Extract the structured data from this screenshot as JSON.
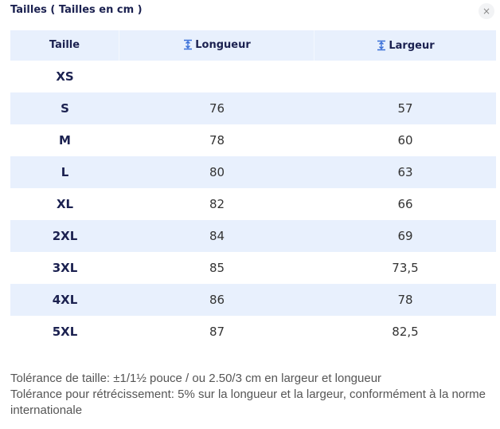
{
  "header": {
    "title": "Tailles ( Tailles en cm )",
    "close": "×"
  },
  "table": {
    "columns": [
      "Taille",
      "Longueur",
      "Largeur"
    ],
    "rows": [
      [
        "XS",
        null,
        null
      ],
      [
        "S",
        "76",
        "57"
      ],
      [
        "M",
        "78",
        "60"
      ],
      [
        "L",
        "80",
        "63"
      ],
      [
        "XL",
        "82",
        "66"
      ],
      [
        "2XL",
        "84",
        "69"
      ],
      [
        "3XL",
        "85",
        "73,5"
      ],
      [
        "4XL",
        "86",
        "78"
      ],
      [
        "5XL",
        "87",
        "82,5"
      ]
    ]
  },
  "notes": [
    "Tolérance de taille: ±1/1½ pouce / ou 2.50/3 cm en largeur et longueur",
    "Tolérance pour rétrécissement: 5% sur la longueur et la largeur, conformément à la norme internationale"
  ]
}
